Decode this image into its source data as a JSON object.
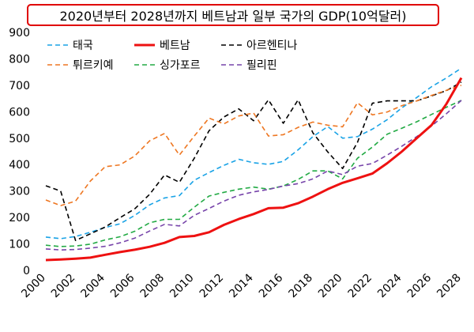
{
  "chart_data": {
    "type": "line",
    "title": "2020년부터 2028년까지 베트남과 일부 국가의 GDP(10억달러)",
    "ylim": [
      0,
      900
    ],
    "y_ticks": [
      0,
      100,
      200,
      300,
      400,
      500,
      600,
      700,
      800,
      900
    ],
    "x_ticks": [
      2000,
      2002,
      2004,
      2006,
      2008,
      2010,
      2012,
      2014,
      2016,
      2018,
      2020,
      2022,
      2024,
      2026,
      2028
    ],
    "x": [
      2000,
      2001,
      2002,
      2003,
      2004,
      2005,
      2006,
      2007,
      2008,
      2009,
      2010,
      2011,
      2012,
      2013,
      2014,
      2015,
      2016,
      2017,
      2018,
      2019,
      2020,
      2021,
      2022,
      2023,
      2024,
      2025,
      2026,
      2027,
      2028
    ],
    "grid": false,
    "legend_position": "top-left",
    "series": [
      {
        "name": "태국",
        "color": "#1aa3e6",
        "dash": "dash",
        "values": [
          126,
          120,
          128,
          144,
          162,
          176,
          208,
          248,
          274,
          283,
          341,
          370,
          397,
          420,
          407,
          401,
          412,
          456,
          506,
          544,
          500,
          506,
          534,
          570,
          615,
          654,
          695,
          728,
          765
        ]
      },
      {
        "name": "베트남",
        "color": "#ee1111",
        "dash": "solid",
        "values": [
          39,
          41,
          44,
          48,
          59,
          69,
          78,
          89,
          104,
          126,
          130,
          144,
          172,
          194,
          213,
          235,
          237,
          254,
          279,
          307,
          331,
          348,
          366,
          405,
          450,
          500,
          550,
          630,
          728
        ]
      },
      {
        "name": "아르헨티나",
        "color": "#000000",
        "dash": "dash",
        "values": [
          320,
          300,
          113,
          138,
          164,
          199,
          233,
          288,
          361,
          333,
          424,
          528,
          580,
          611,
          566,
          645,
          556,
          645,
          520,
          448,
          385,
          484,
          632,
          641,
          641,
          641,
          660,
          680,
          712
        ]
      },
      {
        "name": "튀르키예",
        "color": "#ee7722",
        "dash": "dash",
        "values": [
          266,
          245,
          262,
          338,
          392,
          399,
          433,
          490,
          518,
          436,
          508,
          576,
          554,
          584,
          595,
          508,
          513,
          541,
          561,
          549,
          543,
          634,
          588,
          599,
          623,
          641,
          662,
          681,
          700
        ]
      },
      {
        "name": "싱가포르",
        "color": "#22aa44",
        "dash": "dash",
        "values": [
          95,
          90,
          92,
          99,
          115,
          127,
          148,
          180,
          193,
          193,
          239,
          281,
          295,
          307,
          315,
          307,
          319,
          344,
          376,
          376,
          346,
          424,
          466,
          515,
          538,
          562,
          590,
          617,
          643
        ]
      },
      {
        "name": "필리핀",
        "color": "#7744aa",
        "dash": "dash",
        "values": [
          81,
          77,
          79,
          84,
          91,
          104,
          122,
          149,
          174,
          168,
          208,
          234,
          262,
          284,
          297,
          306,
          319,
          328,
          346,
          376,
          362,
          394,
          404,
          436,
          470,
          506,
          546,
          593,
          643
        ]
      }
    ]
  }
}
